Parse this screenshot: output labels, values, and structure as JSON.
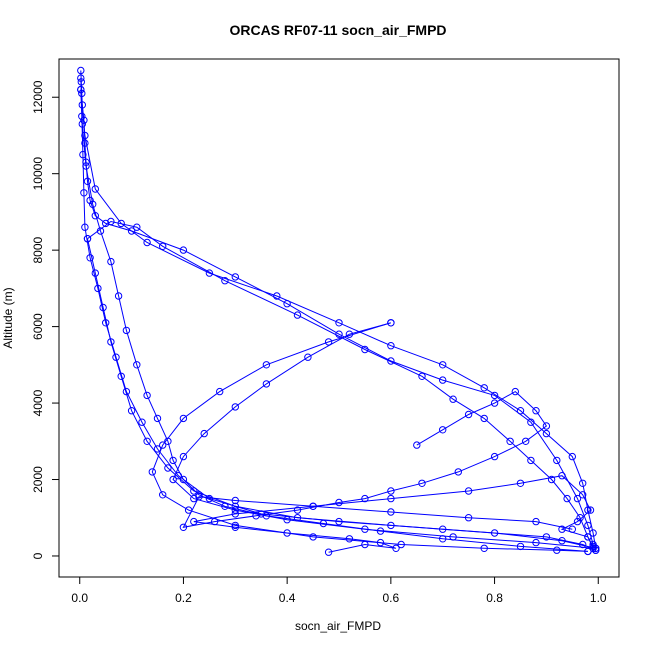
{
  "chart_data": {
    "type": "line",
    "title": "ORCAS RF07-11 socn_air_FMPD",
    "xlabel": "socn_air_FMPD",
    "ylabel": "Altitude (m)",
    "xlim": [
      -0.04,
      1.04
    ],
    "ylim": [
      -550,
      13000
    ],
    "x_ticks": [
      0.0,
      0.2,
      0.4,
      0.6,
      0.8,
      1.0
    ],
    "x_tick_labels": [
      "0.0",
      "0.2",
      "0.4",
      "0.6",
      "0.8",
      "1.0"
    ],
    "y_ticks": [
      0,
      2000,
      4000,
      6000,
      8000,
      10000,
      12000
    ],
    "y_tick_labels": [
      "0",
      "2000",
      "4000",
      "6000",
      "8000",
      "10000",
      "12000"
    ],
    "grid": false,
    "series_color": "#0000ff",
    "marker": "open-circle",
    "series": [
      {
        "points": [
          [
            0.002,
            12700
          ],
          [
            0.003,
            12400
          ],
          [
            0.004,
            12100
          ],
          [
            0.005,
            11800
          ],
          [
            0.008,
            11400
          ],
          [
            0.01,
            10800
          ],
          [
            0.012,
            10300
          ],
          [
            0.015,
            9800
          ],
          [
            0.02,
            9300
          ],
          [
            0.03,
            8900
          ],
          [
            0.05,
            8700
          ],
          [
            0.1,
            8500
          ],
          [
            0.2,
            8000
          ],
          [
            0.3,
            7300
          ],
          [
            0.4,
            6600
          ],
          [
            0.5,
            5800
          ],
          [
            0.6,
            5100
          ],
          [
            0.7,
            4600
          ],
          [
            0.8,
            4200
          ],
          [
            0.87,
            3500
          ],
          [
            0.92,
            2500
          ],
          [
            0.96,
            1500
          ],
          [
            0.98,
            800
          ],
          [
            0.99,
            300
          ],
          [
            0.995,
            150
          ]
        ]
      },
      {
        "points": [
          [
            0.995,
            150
          ],
          [
            0.97,
            300
          ],
          [
            0.9,
            500
          ],
          [
            0.7,
            700
          ],
          [
            0.5,
            900
          ],
          [
            0.35,
            1100
          ],
          [
            0.25,
            1500
          ],
          [
            0.19,
            2100
          ],
          [
            0.15,
            2800
          ],
          [
            0.12,
            3500
          ],
          [
            0.09,
            4300
          ],
          [
            0.07,
            5200
          ],
          [
            0.05,
            6100
          ],
          [
            0.035,
            7000
          ],
          [
            0.02,
            7800
          ],
          [
            0.01,
            8600
          ],
          [
            0.008,
            9500
          ],
          [
            0.006,
            10500
          ],
          [
            0.004,
            11500
          ],
          [
            0.002,
            12200
          ]
        ]
      },
      {
        "points": [
          [
            0.002,
            12200
          ],
          [
            0.01,
            11000
          ],
          [
            0.03,
            9600
          ],
          [
            0.08,
            8700
          ],
          [
            0.13,
            8200
          ],
          [
            0.25,
            7400
          ],
          [
            0.38,
            6800
          ],
          [
            0.5,
            6100
          ],
          [
            0.6,
            5500
          ],
          [
            0.7,
            5000
          ],
          [
            0.78,
            4400
          ],
          [
            0.85,
            3800
          ],
          [
            0.9,
            3200
          ],
          [
            0.95,
            2600
          ],
          [
            0.97,
            1900
          ],
          [
            0.98,
            1200
          ],
          [
            0.99,
            600
          ],
          [
            0.995,
            200
          ]
        ]
      },
      {
        "points": [
          [
            0.995,
            200
          ],
          [
            0.93,
            400
          ],
          [
            0.8,
            600
          ],
          [
            0.6,
            800
          ],
          [
            0.42,
            1000
          ],
          [
            0.3,
            1300
          ],
          [
            0.22,
            1700
          ],
          [
            0.17,
            2300
          ],
          [
            0.13,
            3000
          ],
          [
            0.1,
            3800
          ],
          [
            0.08,
            4700
          ],
          [
            0.06,
            5600
          ],
          [
            0.045,
            6500
          ],
          [
            0.03,
            7400
          ],
          [
            0.015,
            8300
          ]
        ]
      },
      {
        "points": [
          [
            0.015,
            8300
          ],
          [
            0.06,
            8750
          ],
          [
            0.11,
            8600
          ],
          [
            0.16,
            8100
          ],
          [
            0.28,
            7200
          ],
          [
            0.42,
            6300
          ],
          [
            0.55,
            5400
          ],
          [
            0.66,
            4700
          ],
          [
            0.72,
            4100
          ],
          [
            0.78,
            3600
          ],
          [
            0.83,
            3000
          ],
          [
            0.87,
            2500
          ],
          [
            0.91,
            2000
          ],
          [
            0.94,
            1500
          ],
          [
            0.965,
            1000
          ],
          [
            0.98,
            500
          ],
          [
            0.99,
            200
          ]
        ]
      },
      {
        "points": [
          [
            0.99,
            200
          ],
          [
            0.88,
            350
          ],
          [
            0.72,
            500
          ],
          [
            0.55,
            700
          ],
          [
            0.4,
            950
          ],
          [
            0.3,
            1200
          ],
          [
            0.22,
            1500
          ],
          [
            0.18,
            2000
          ],
          [
            0.2,
            2600
          ],
          [
            0.24,
            3200
          ],
          [
            0.3,
            3900
          ],
          [
            0.36,
            4500
          ],
          [
            0.44,
            5200
          ],
          [
            0.52,
            5800
          ],
          [
            0.6,
            6100
          ]
        ]
      },
      {
        "points": [
          [
            0.6,
            6100
          ],
          [
            0.48,
            5600
          ],
          [
            0.36,
            5000
          ],
          [
            0.27,
            4300
          ],
          [
            0.2,
            3600
          ],
          [
            0.16,
            2900
          ],
          [
            0.14,
            2200
          ],
          [
            0.16,
            1600
          ],
          [
            0.21,
            1200
          ],
          [
            0.3,
            800
          ],
          [
            0.45,
            500
          ],
          [
            0.62,
            300
          ],
          [
            0.78,
            200
          ],
          [
            0.92,
            150
          ],
          [
            0.98,
            120
          ]
        ]
      },
      {
        "points": [
          [
            0.98,
            120
          ],
          [
            0.85,
            250
          ],
          [
            0.7,
            450
          ],
          [
            0.58,
            650
          ],
          [
            0.47,
            850
          ],
          [
            0.36,
            1050
          ],
          [
            0.28,
            1300
          ],
          [
            0.23,
            1600
          ],
          [
            0.2,
            2000
          ],
          [
            0.18,
            2500
          ],
          [
            0.17,
            3000
          ],
          [
            0.15,
            3600
          ],
          [
            0.13,
            4200
          ],
          [
            0.11,
            5000
          ],
          [
            0.09,
            5900
          ],
          [
            0.075,
            6800
          ],
          [
            0.06,
            7700
          ],
          [
            0.04,
            8500
          ],
          [
            0.025,
            9200
          ],
          [
            0.012,
            10200
          ],
          [
            0.005,
            11300
          ],
          [
            0.002,
            12500
          ]
        ]
      },
      {
        "points": [
          [
            0.48,
            100
          ],
          [
            0.55,
            300
          ],
          [
            0.61,
            200
          ],
          [
            0.58,
            350
          ],
          [
            0.52,
            450
          ],
          [
            0.4,
            600
          ],
          [
            0.3,
            750
          ],
          [
            0.22,
            900
          ],
          [
            0.3,
            1100
          ],
          [
            0.45,
            1300
          ],
          [
            0.6,
            1500
          ],
          [
            0.75,
            1700
          ],
          [
            0.85,
            1900
          ],
          [
            0.93,
            2100
          ],
          [
            0.97,
            1600
          ],
          [
            0.985,
            1200
          ],
          [
            0.96,
            900
          ],
          [
            0.93,
            700
          ],
          [
            0.98,
            500
          ],
          [
            0.99,
            250
          ]
        ]
      },
      {
        "points": [
          [
            0.65,
            2900
          ],
          [
            0.7,
            3300
          ],
          [
            0.75,
            3700
          ],
          [
            0.8,
            4000
          ],
          [
            0.84,
            4300
          ],
          [
            0.88,
            3800
          ],
          [
            0.9,
            3400
          ],
          [
            0.86,
            3000
          ],
          [
            0.8,
            2600
          ],
          [
            0.73,
            2200
          ],
          [
            0.66,
            1900
          ],
          [
            0.6,
            1700
          ],
          [
            0.55,
            1500
          ],
          [
            0.5,
            1400
          ],
          [
            0.42,
            1200
          ],
          [
            0.34,
            1050
          ],
          [
            0.26,
            900
          ],
          [
            0.2,
            750
          ],
          [
            0.23,
            1550
          ],
          [
            0.3,
            1450
          ],
          [
            0.45,
            1300
          ],
          [
            0.6,
            1150
          ],
          [
            0.75,
            1000
          ],
          [
            0.88,
            900
          ],
          [
            0.95,
            700
          ]
        ]
      }
    ]
  }
}
